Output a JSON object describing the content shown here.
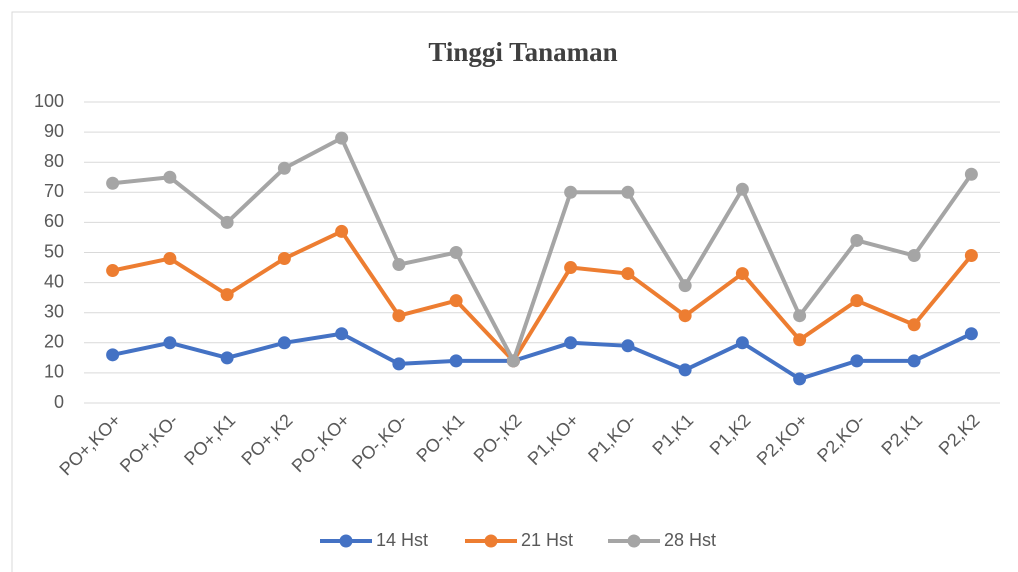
{
  "chart_data": {
    "type": "line",
    "title": "Tinggi Tanaman",
    "categories": [
      "PO+,KO+",
      "PO+,KO-",
      "PO+,K1",
      "PO+,K2",
      "PO-,KO+",
      "PO-,KO-",
      "PO-,K1",
      "PO-,K2",
      "P1,KO+",
      "P1,KO-",
      "P1,K1",
      "P1,K2",
      "P2,KO+",
      "P2,KO-",
      "P2,K1",
      "P2,K2"
    ],
    "series": [
      {
        "name": "14 Hst",
        "color": "#4472c4",
        "values": [
          16,
          20,
          15,
          20,
          23,
          13,
          14,
          14,
          20,
          19,
          11,
          20,
          8,
          14,
          14,
          23
        ]
      },
      {
        "name": "21 Hst",
        "color": "#ed7d31",
        "values": [
          44,
          48,
          36,
          48,
          57,
          29,
          34,
          14,
          45,
          43,
          29,
          43,
          21,
          34,
          26,
          49
        ]
      },
      {
        "name": "28 Hst",
        "color": "#a5a5a5",
        "values": [
          73,
          75,
          60,
          78,
          88,
          46,
          50,
          14,
          70,
          70,
          39,
          71,
          29,
          54,
          49,
          76
        ]
      }
    ],
    "ylim": [
      0,
      100
    ],
    "yticks": [
      0,
      10,
      20,
      30,
      40,
      50,
      60,
      70,
      80,
      90,
      100
    ],
    "grid": true,
    "legend": "bottom"
  }
}
